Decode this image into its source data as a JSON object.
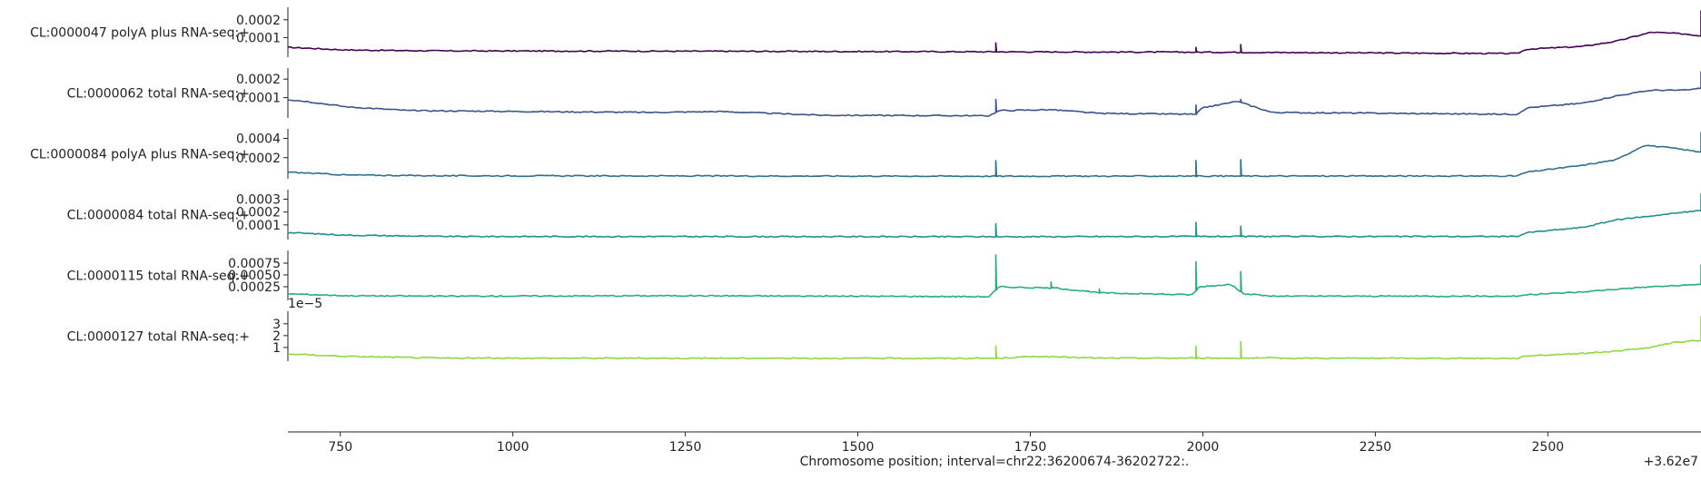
{
  "chart_data": {
    "type": "line",
    "xlabel": "Chromosome position; interval=chr22:36200674-36202722:.",
    "x_offset_label": "+3.62e7",
    "xlim": [
      674,
      2722
    ],
    "x_ticks": [
      750,
      1000,
      1250,
      1500,
      1750,
      2000,
      2250,
      2500
    ],
    "x_tick_labels": [
      "750",
      "1000",
      "1250",
      "1500",
      "1750",
      "2000",
      "2250",
      "2500"
    ],
    "grid": false,
    "tracks": [
      {
        "name": "CL:0000047 polyA plus RNA-seq:+",
        "color": "#440154",
        "ylim": [
          0,
          0.00026
        ],
        "y_ticks": [
          0.0001,
          0.0002
        ],
        "y_tick_labels": [
          "0.0001",
          "0.0002"
        ],
        "base": [
          [
            674,
            4.5e-05
          ],
          [
            760,
            3e-05
          ],
          [
            900,
            2.5e-05
          ],
          [
            1300,
            2.3e-05
          ],
          [
            1700,
            2e-05
          ],
          [
            2000,
            1.8e-05
          ],
          [
            2455,
            1e-05
          ],
          [
            2470,
            3.5e-05
          ],
          [
            2550,
            5e-05
          ],
          [
            2600,
            8e-05
          ],
          [
            2650,
            0.00013
          ],
          [
            2700,
            0.00012
          ],
          [
            2720,
            0.00011
          ]
        ],
        "spikes": [
          [
            1700,
            7e-05
          ],
          [
            1990,
            4.5e-05
          ],
          [
            2055,
            6e-05
          ],
          [
            2722,
            0.00025
          ]
        ]
      },
      {
        "name": "CL:0000062 total RNA-seq:+",
        "color": "#3b528b",
        "ylim": [
          0,
          0.00025
        ],
        "y_ticks": [
          0.0001,
          0.0002
        ],
        "y_tick_labels": [
          "0.0001",
          "0.0002"
        ],
        "base": [
          [
            674,
            9e-05
          ],
          [
            700,
            8e-05
          ],
          [
            760,
            5e-05
          ],
          [
            850,
            3e-05
          ],
          [
            1200,
            2e-05
          ],
          [
            1300,
            2.5e-05
          ],
          [
            1450,
            5e-06
          ],
          [
            1690,
            2e-06
          ],
          [
            1705,
            3e-05
          ],
          [
            1780,
            3.5e-05
          ],
          [
            1850,
            1.5e-05
          ],
          [
            1990,
            1e-05
          ],
          [
            2000,
            4.5e-05
          ],
          [
            2050,
            8e-05
          ],
          [
            2100,
            2e-05
          ],
          [
            2455,
            1e-05
          ],
          [
            2470,
            4.5e-05
          ],
          [
            2550,
            7e-05
          ],
          [
            2600,
            0.00011
          ],
          [
            2650,
            0.00014
          ],
          [
            2700,
            0.00014
          ],
          [
            2720,
            0.00015
          ]
        ],
        "spikes": [
          [
            1700,
            9e-05
          ],
          [
            1990,
            6e-05
          ],
          [
            2055,
            9e-05
          ],
          [
            2722,
            0.00024
          ]
        ]
      },
      {
        "name": "CL:0000084 polyA plus RNA-seq:+",
        "color": "#2c728e",
        "ylim": [
          0,
          0.00048
        ],
        "y_ticks": [
          0.0002,
          0.0004
        ],
        "y_tick_labels": [
          "0.0002",
          "0.0004"
        ],
        "base": [
          [
            674,
            5e-05
          ],
          [
            760,
            2e-05
          ],
          [
            900,
            1.2e-05
          ],
          [
            1700,
            8e-06
          ],
          [
            2455,
            1e-05
          ],
          [
            2470,
            5e-05
          ],
          [
            2550,
            0.00012
          ],
          [
            2600,
            0.00018
          ],
          [
            2640,
            0.00033
          ],
          [
            2680,
            0.0003
          ],
          [
            2700,
            0.00028
          ],
          [
            2720,
            0.00026
          ]
        ],
        "spikes": [
          [
            1700,
            0.00017
          ],
          [
            1990,
            0.00017
          ],
          [
            2055,
            0.00018
          ],
          [
            2722,
            0.00046
          ]
        ]
      },
      {
        "name": "CL:0000084 total RNA-seq:+",
        "color": "#21918c",
        "ylim": [
          0,
          0.00036
        ],
        "y_ticks": [
          0.0001,
          0.0002,
          0.0003
        ],
        "y_tick_labels": [
          "0.0001",
          "0.0002",
          "0.0003"
        ],
        "base": [
          [
            674,
            4e-05
          ],
          [
            760,
            2e-05
          ],
          [
            900,
            1e-05
          ],
          [
            1700,
            8e-06
          ],
          [
            2000,
            1e-05
          ],
          [
            2455,
            1e-05
          ],
          [
            2470,
            4e-05
          ],
          [
            2550,
            8e-05
          ],
          [
            2600,
            0.00014
          ],
          [
            2650,
            0.00017
          ],
          [
            2700,
            0.0002
          ],
          [
            2720,
            0.00021
          ]
        ],
        "spikes": [
          [
            1700,
            0.00011
          ],
          [
            1990,
            0.00012
          ],
          [
            2055,
            9e-05
          ],
          [
            2722,
            0.00034
          ]
        ]
      },
      {
        "name": "CL:0000115 total RNA-seq:+",
        "color": "#27ad81",
        "ylim": [
          0,
          0.00098
        ],
        "y_ticks": [
          0.00025,
          0.0005,
          0.00075
        ],
        "y_tick_labels": [
          "0.00025",
          "0.00050",
          "0.00075"
        ],
        "base": [
          [
            674,
            0.0001
          ],
          [
            760,
            6e-05
          ],
          [
            900,
            5e-05
          ],
          [
            1250,
            6e-05
          ],
          [
            1690,
            4e-05
          ],
          [
            1705,
            0.00025
          ],
          [
            1750,
            0.00023
          ],
          [
            1790,
            0.00022
          ],
          [
            1850,
            0.00012
          ],
          [
            1985,
            8e-05
          ],
          [
            1995,
            0.00025
          ],
          [
            2040,
            0.0003
          ],
          [
            2060,
            0.0001
          ],
          [
            2100,
            5e-05
          ],
          [
            2455,
            5e-05
          ],
          [
            2470,
            8e-05
          ],
          [
            2550,
            0.00014
          ],
          [
            2600,
            0.0002
          ],
          [
            2650,
            0.00025
          ],
          [
            2700,
            0.00028
          ],
          [
            2720,
            0.0003
          ]
        ],
        "spikes": [
          [
            1700,
            0.00092
          ],
          [
            1780,
            0.00035
          ],
          [
            1850,
            0.0002
          ],
          [
            1990,
            0.00078
          ],
          [
            2055,
            0.00057
          ],
          [
            2722,
            0.00071
          ]
        ]
      },
      {
        "name": "CL:0000127 total RNA-seq:+",
        "color": "#8fd744",
        "exponent_label": "1e−5",
        "ylim": [
          0,
          3.9
        ],
        "y_ticks": [
          1,
          2,
          3
        ],
        "y_tick_labels": [
          "1",
          "2",
          "3"
        ],
        "base": [
          [
            674,
            0.45
          ],
          [
            760,
            0.25
          ],
          [
            900,
            0.1
          ],
          [
            1700,
            0.08
          ],
          [
            1760,
            0.25
          ],
          [
            1850,
            0.1
          ],
          [
            2000,
            0.1
          ],
          [
            2455,
            0.08
          ],
          [
            2470,
            0.3
          ],
          [
            2550,
            0.5
          ],
          [
            2600,
            0.7
          ],
          [
            2650,
            1.0
          ],
          [
            2680,
            1.4
          ],
          [
            2720,
            1.6
          ]
        ],
        "spikes": [
          [
            1700,
            1.1
          ],
          [
            1990,
            1.1
          ],
          [
            2055,
            1.5
          ],
          [
            2722,
            3.6
          ]
        ]
      }
    ]
  }
}
